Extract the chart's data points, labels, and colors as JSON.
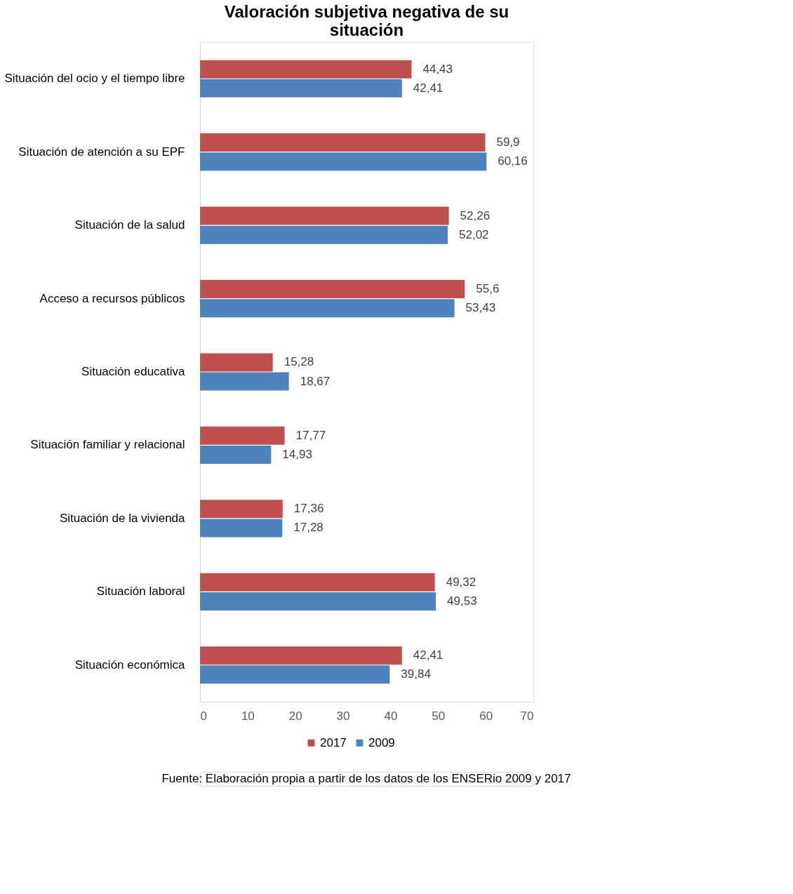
{
  "chart_data": {
    "type": "bar",
    "orientation": "horizontal",
    "title": "Valoración subjetiva negativa de su situación",
    "categories": [
      "Situación del ocio y el tiempo libre",
      "Situación de atención a su EPF",
      "Situación de la salud",
      "Acceso a recursos públicos",
      "Situación educativa",
      "Situación familiar y relacional",
      "Situación de la vivienda",
      "Situación laboral",
      "Situación económica"
    ],
    "series": [
      {
        "name": "2017",
        "color": "#c0504d",
        "values": [
          44.43,
          59.9,
          52.26,
          55.6,
          15.28,
          17.77,
          17.36,
          49.32,
          42.41
        ],
        "value_labels": [
          "44,43",
          "59,9",
          "52,26",
          "55,6",
          "15,28",
          "17,77",
          "17,36",
          "49,32",
          "42,41"
        ]
      },
      {
        "name": "2009",
        "color": "#4f81bd",
        "values": [
          42.41,
          60.16,
          52.02,
          53.43,
          18.67,
          14.93,
          17.28,
          49.53,
          39.84
        ],
        "value_labels": [
          "42,41",
          "60,16",
          "52,02",
          "53,43",
          "18,67",
          "14,93",
          "17,28",
          "49,53",
          "39,84"
        ]
      }
    ],
    "xlim": [
      0,
      70
    ],
    "xticks": [
      0,
      10,
      20,
      30,
      40,
      50,
      60,
      70
    ],
    "grid": false,
    "legend": "bottom",
    "annotations": [
      "Fuente: Elaboración propia a partir de los datos de los ENSERio 2009 y 2017"
    ]
  }
}
